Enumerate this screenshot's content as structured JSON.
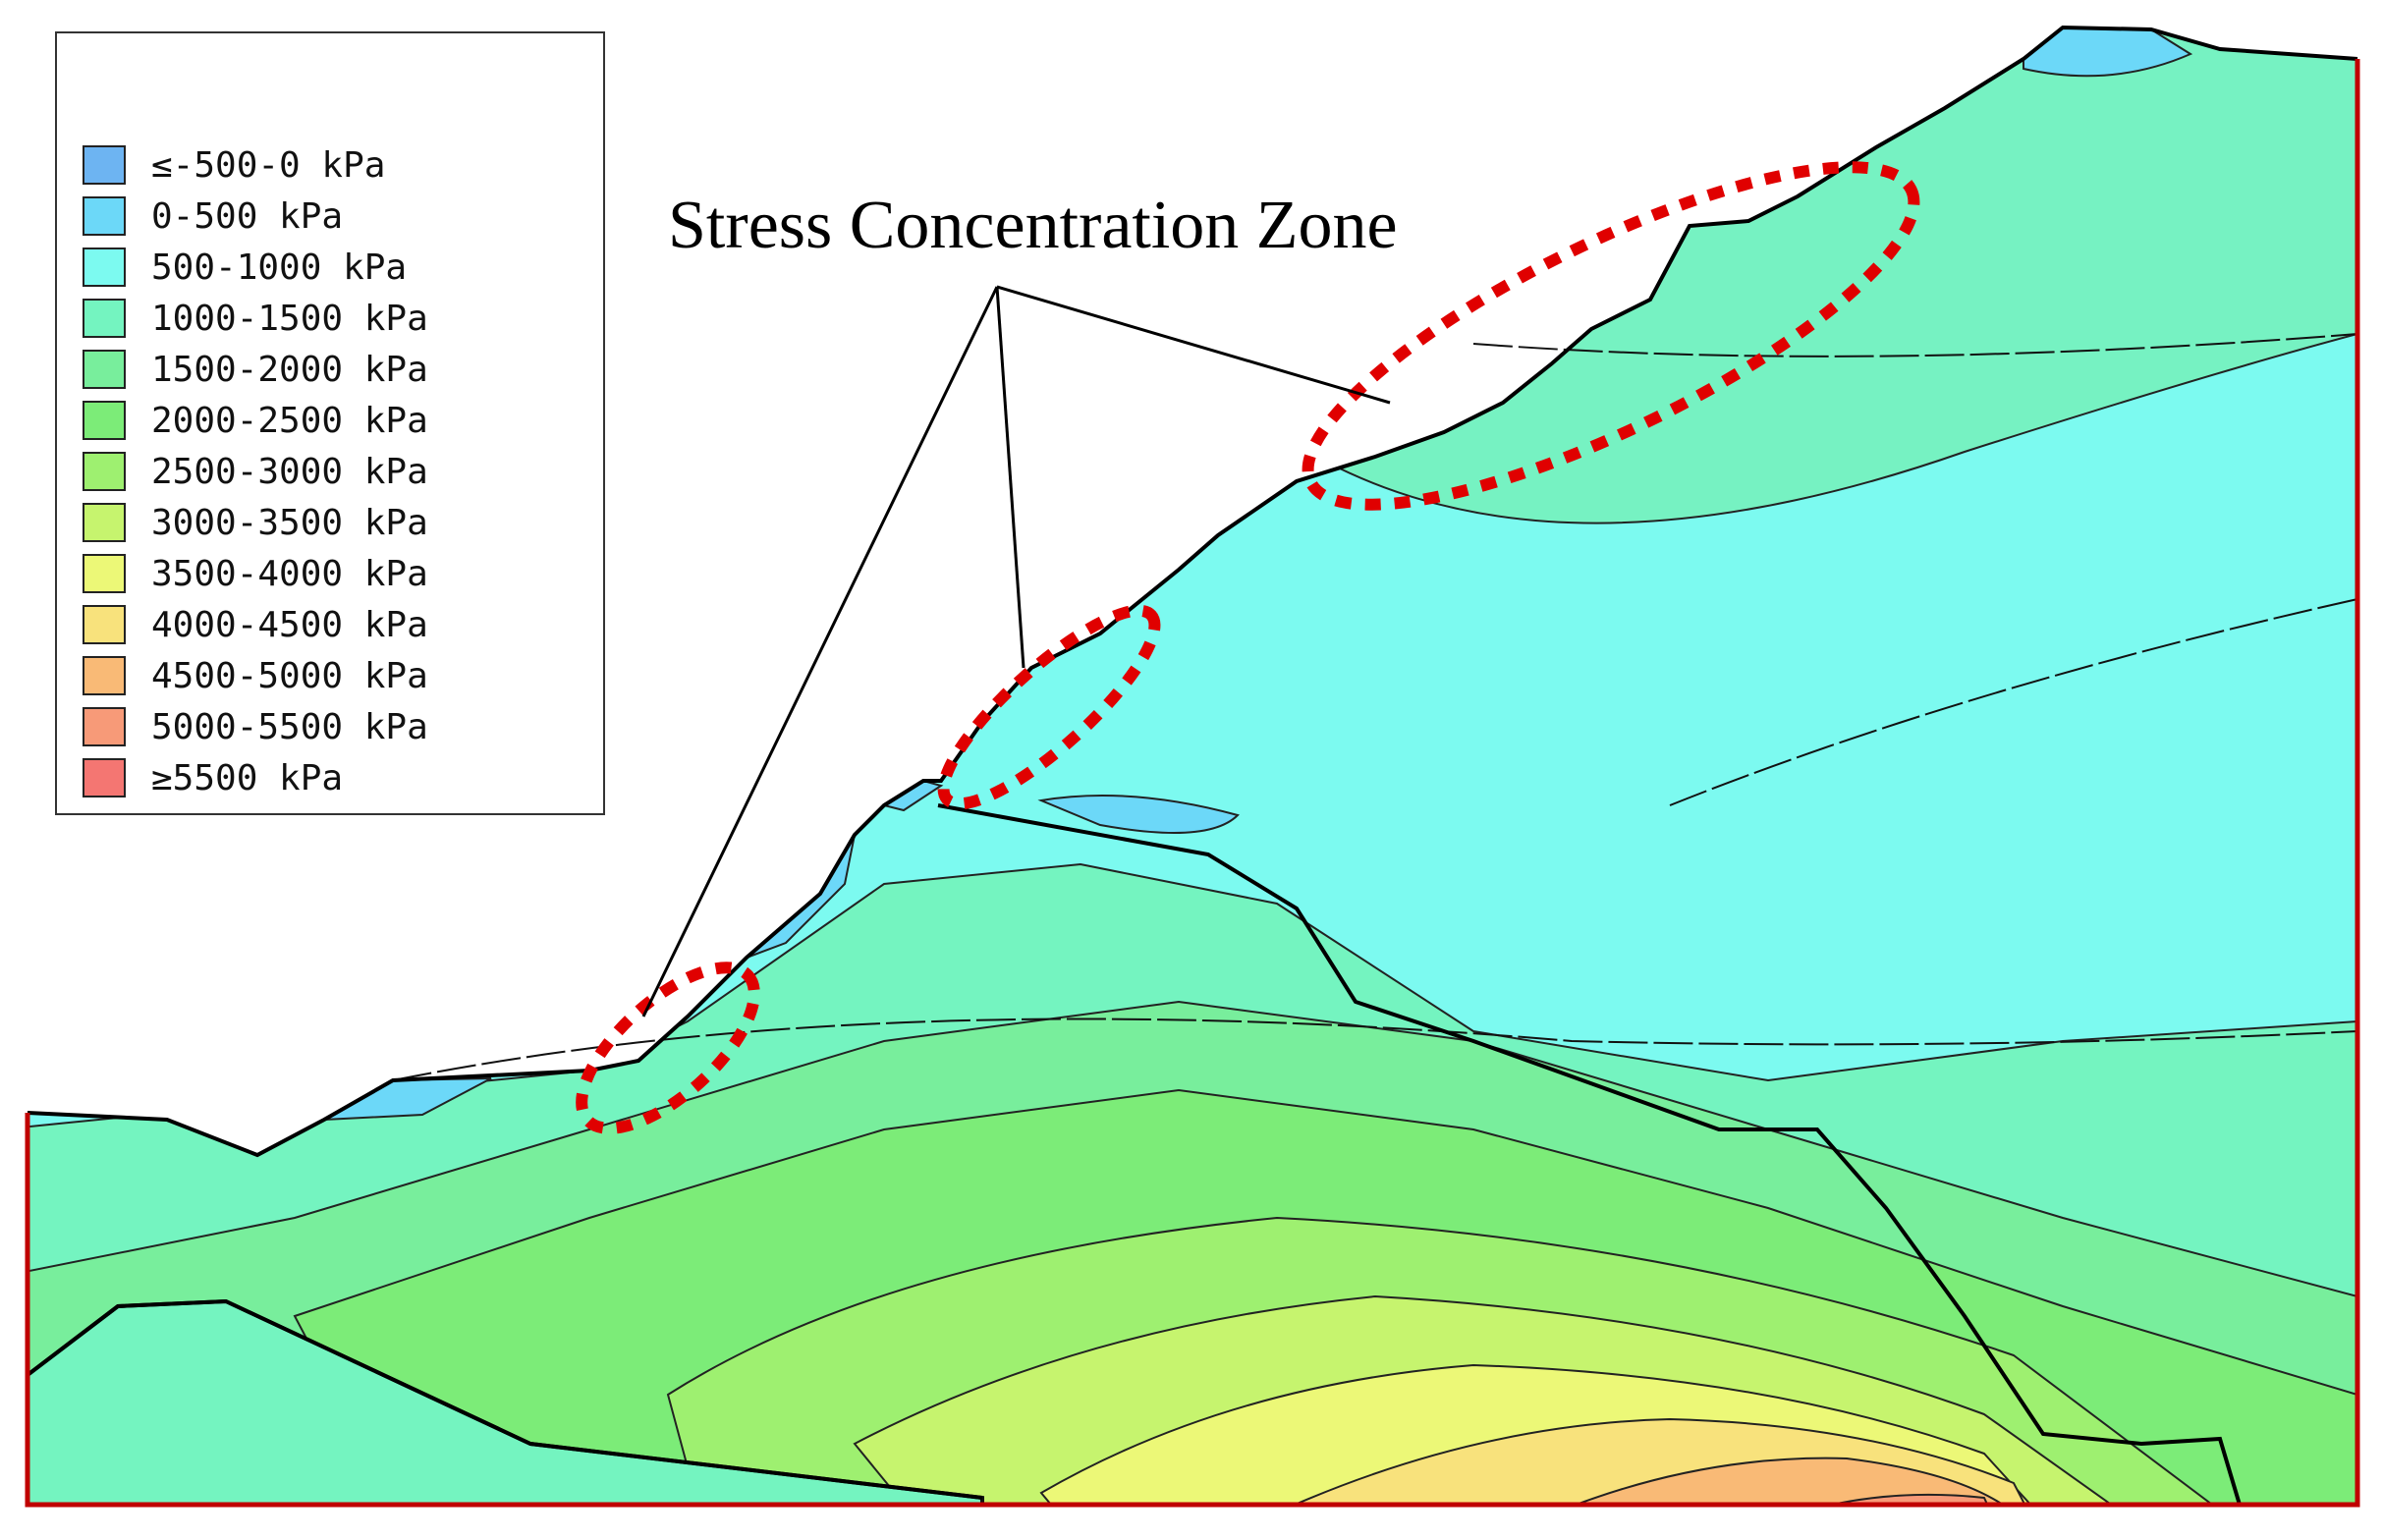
{
  "figure": {
    "annotation": "Stress Concentration Zone",
    "frame_color": "#c00000",
    "highlight_color": "#e00000"
  },
  "legend": {
    "items": [
      {
        "label": "≤-500-0 kPa",
        "color": "#6db4f2"
      },
      {
        "label": "0-500 kPa",
        "color": "#6cd8f8"
      },
      {
        "label": "500-1000 kPa",
        "color": "#7cfaf0"
      },
      {
        "label": "1000-1500 kPa",
        "color": "#74f4c0"
      },
      {
        "label": "1500-2000 kPa",
        "color": "#78ee9c"
      },
      {
        "label": "2000-2500 kPa",
        "color": "#7cec78"
      },
      {
        "label": "2500-3000 kPa",
        "color": "#9ef070"
      },
      {
        "label": "3000-3500 kPa",
        "color": "#c6f46e"
      },
      {
        "label": "3500-4000 kPa",
        "color": "#ecf877"
      },
      {
        "label": "4000-4500 kPa",
        "color": "#f8e27c"
      },
      {
        "label": "4500-5000 kPa",
        "color": "#f9ba76"
      },
      {
        "label": "5000-5500 kPa",
        "color": "#f79a78"
      },
      {
        "label": "≥5500 kPa",
        "color": "#f47672"
      }
    ]
  }
}
